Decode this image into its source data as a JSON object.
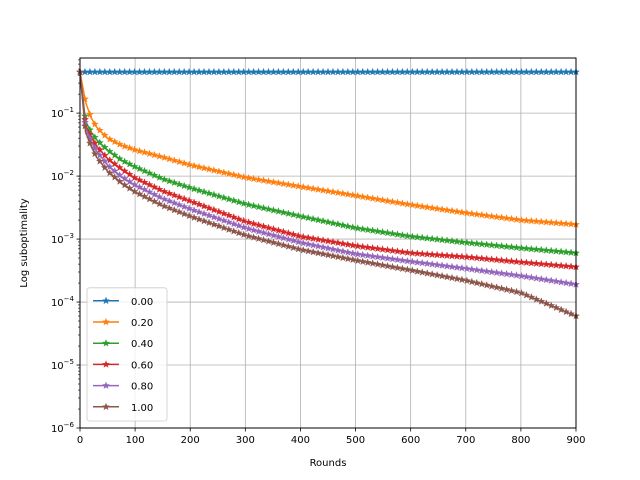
{
  "chart_data": {
    "type": "line",
    "xlabel": "Rounds",
    "ylabel": "Log suboptimality",
    "y_scale": "log",
    "xlim": [
      0,
      900
    ],
    "ylim": [
      1e-06,
      0.75
    ],
    "x_ticks": [
      0,
      100,
      200,
      300,
      400,
      500,
      600,
      700,
      800,
      900
    ],
    "x_tick_labels": [
      "0",
      "100",
      "200",
      "300",
      "400",
      "500",
      "600",
      "700",
      "800",
      "900"
    ],
    "y_ticks": [
      1e-06,
      1e-05,
      0.0001,
      0.001,
      0.01,
      0.1
    ],
    "y_tick_labels": [
      "10−6",
      "10−5",
      "10−4",
      "10−3",
      "10−2",
      "10−1"
    ],
    "grid": true,
    "legend_position": "lower-left",
    "marker": "star",
    "series": [
      {
        "name": "0.00",
        "color": "#1f77b4",
        "x": [
          0,
          900
        ],
        "y": [
          0.45,
          0.45
        ]
      },
      {
        "name": "0.20",
        "color": "#ff7f0e",
        "x": [
          0,
          10,
          20,
          30,
          50,
          75,
          100,
          150,
          200,
          300,
          400,
          500,
          600,
          700,
          800,
          900
        ],
        "y": [
          0.45,
          0.15,
          0.085,
          0.06,
          0.04,
          0.031,
          0.026,
          0.02,
          0.015,
          0.0095,
          0.0068,
          0.0049,
          0.0035,
          0.0026,
          0.002,
          0.0017
        ]
      },
      {
        "name": "0.40",
        "color": "#2ca02c",
        "x": [
          0,
          10,
          20,
          30,
          50,
          75,
          100,
          150,
          200,
          300,
          400,
          500,
          600,
          700,
          800,
          900
        ],
        "y": [
          0.45,
          0.075,
          0.05,
          0.038,
          0.026,
          0.018,
          0.014,
          0.009,
          0.0065,
          0.0036,
          0.0023,
          0.0015,
          0.0011,
          0.00088,
          0.00072,
          0.0006
        ]
      },
      {
        "name": "0.60",
        "color": "#d62728",
        "x": [
          0,
          10,
          20,
          30,
          50,
          75,
          100,
          150,
          200,
          300,
          400,
          500,
          600,
          700,
          800,
          900
        ],
        "y": [
          0.45,
          0.065,
          0.042,
          0.03,
          0.019,
          0.013,
          0.0093,
          0.0058,
          0.004,
          0.0019,
          0.0011,
          0.00078,
          0.0006,
          0.00052,
          0.00043,
          0.00036
        ]
      },
      {
        "name": "0.80",
        "color": "#9467bd",
        "x": [
          0,
          10,
          20,
          30,
          50,
          75,
          100,
          150,
          200,
          300,
          400,
          500,
          600,
          700,
          800,
          900
        ],
        "y": [
          0.45,
          0.058,
          0.036,
          0.025,
          0.015,
          0.0098,
          0.0072,
          0.0044,
          0.003,
          0.0015,
          0.00088,
          0.00058,
          0.00044,
          0.00034,
          0.00026,
          0.00019
        ]
      },
      {
        "name": "1.00",
        "color": "#8c564b",
        "x": [
          0,
          10,
          20,
          30,
          50,
          75,
          100,
          150,
          200,
          300,
          400,
          500,
          600,
          700,
          800,
          900
        ],
        "y": [
          0.45,
          0.05,
          0.03,
          0.02,
          0.012,
          0.0078,
          0.0056,
          0.0034,
          0.0023,
          0.00115,
          0.00068,
          0.00046,
          0.00032,
          0.00022,
          0.00014,
          6e-05
        ]
      }
    ]
  }
}
